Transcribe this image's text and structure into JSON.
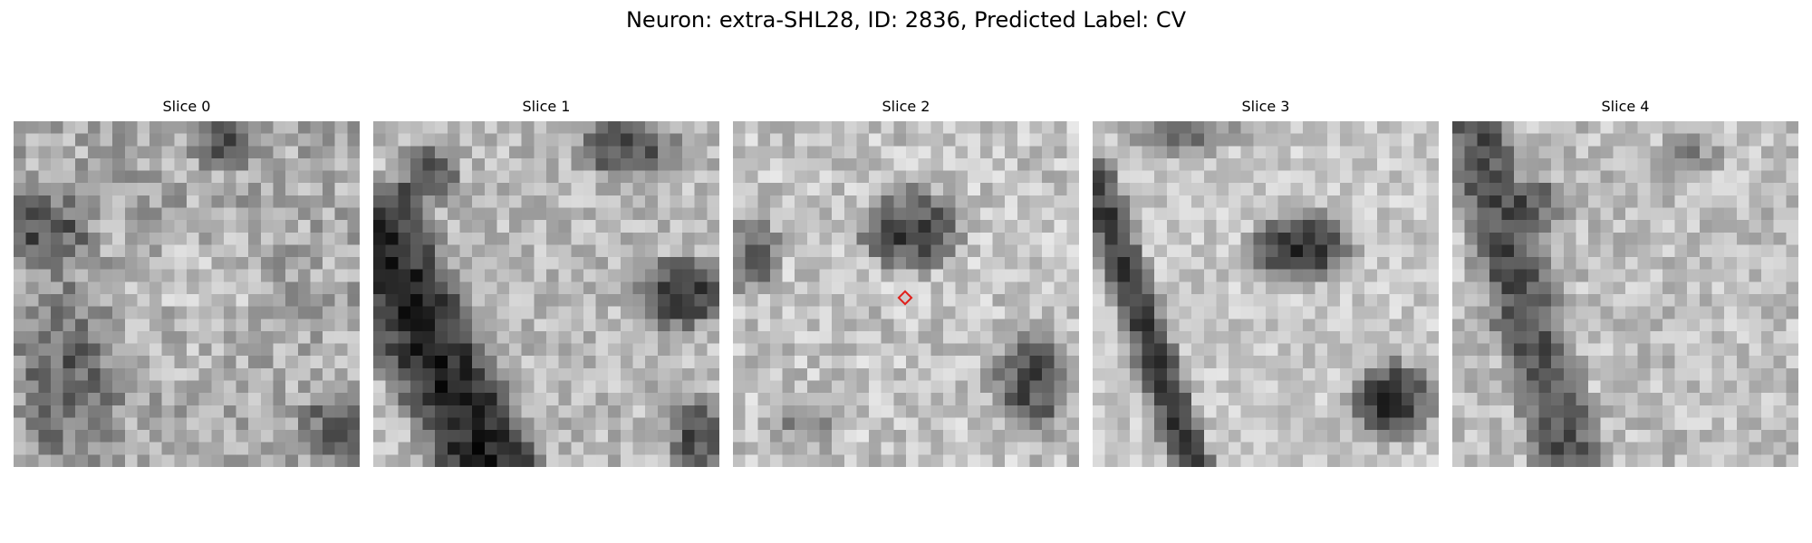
{
  "figure": {
    "title": "Neuron: extra-SHL28, ID: 2836, Predicted Label: CV"
  },
  "slices": [
    {
      "title": "Slice 0",
      "has_marker": false
    },
    {
      "title": "Slice 1",
      "has_marker": false
    },
    {
      "title": "Slice 2",
      "has_marker": true
    },
    {
      "title": "Slice 3",
      "has_marker": false
    },
    {
      "title": "Slice 4",
      "has_marker": false
    }
  ],
  "marker_color": "#e0201c",
  "colormap": "gray"
}
